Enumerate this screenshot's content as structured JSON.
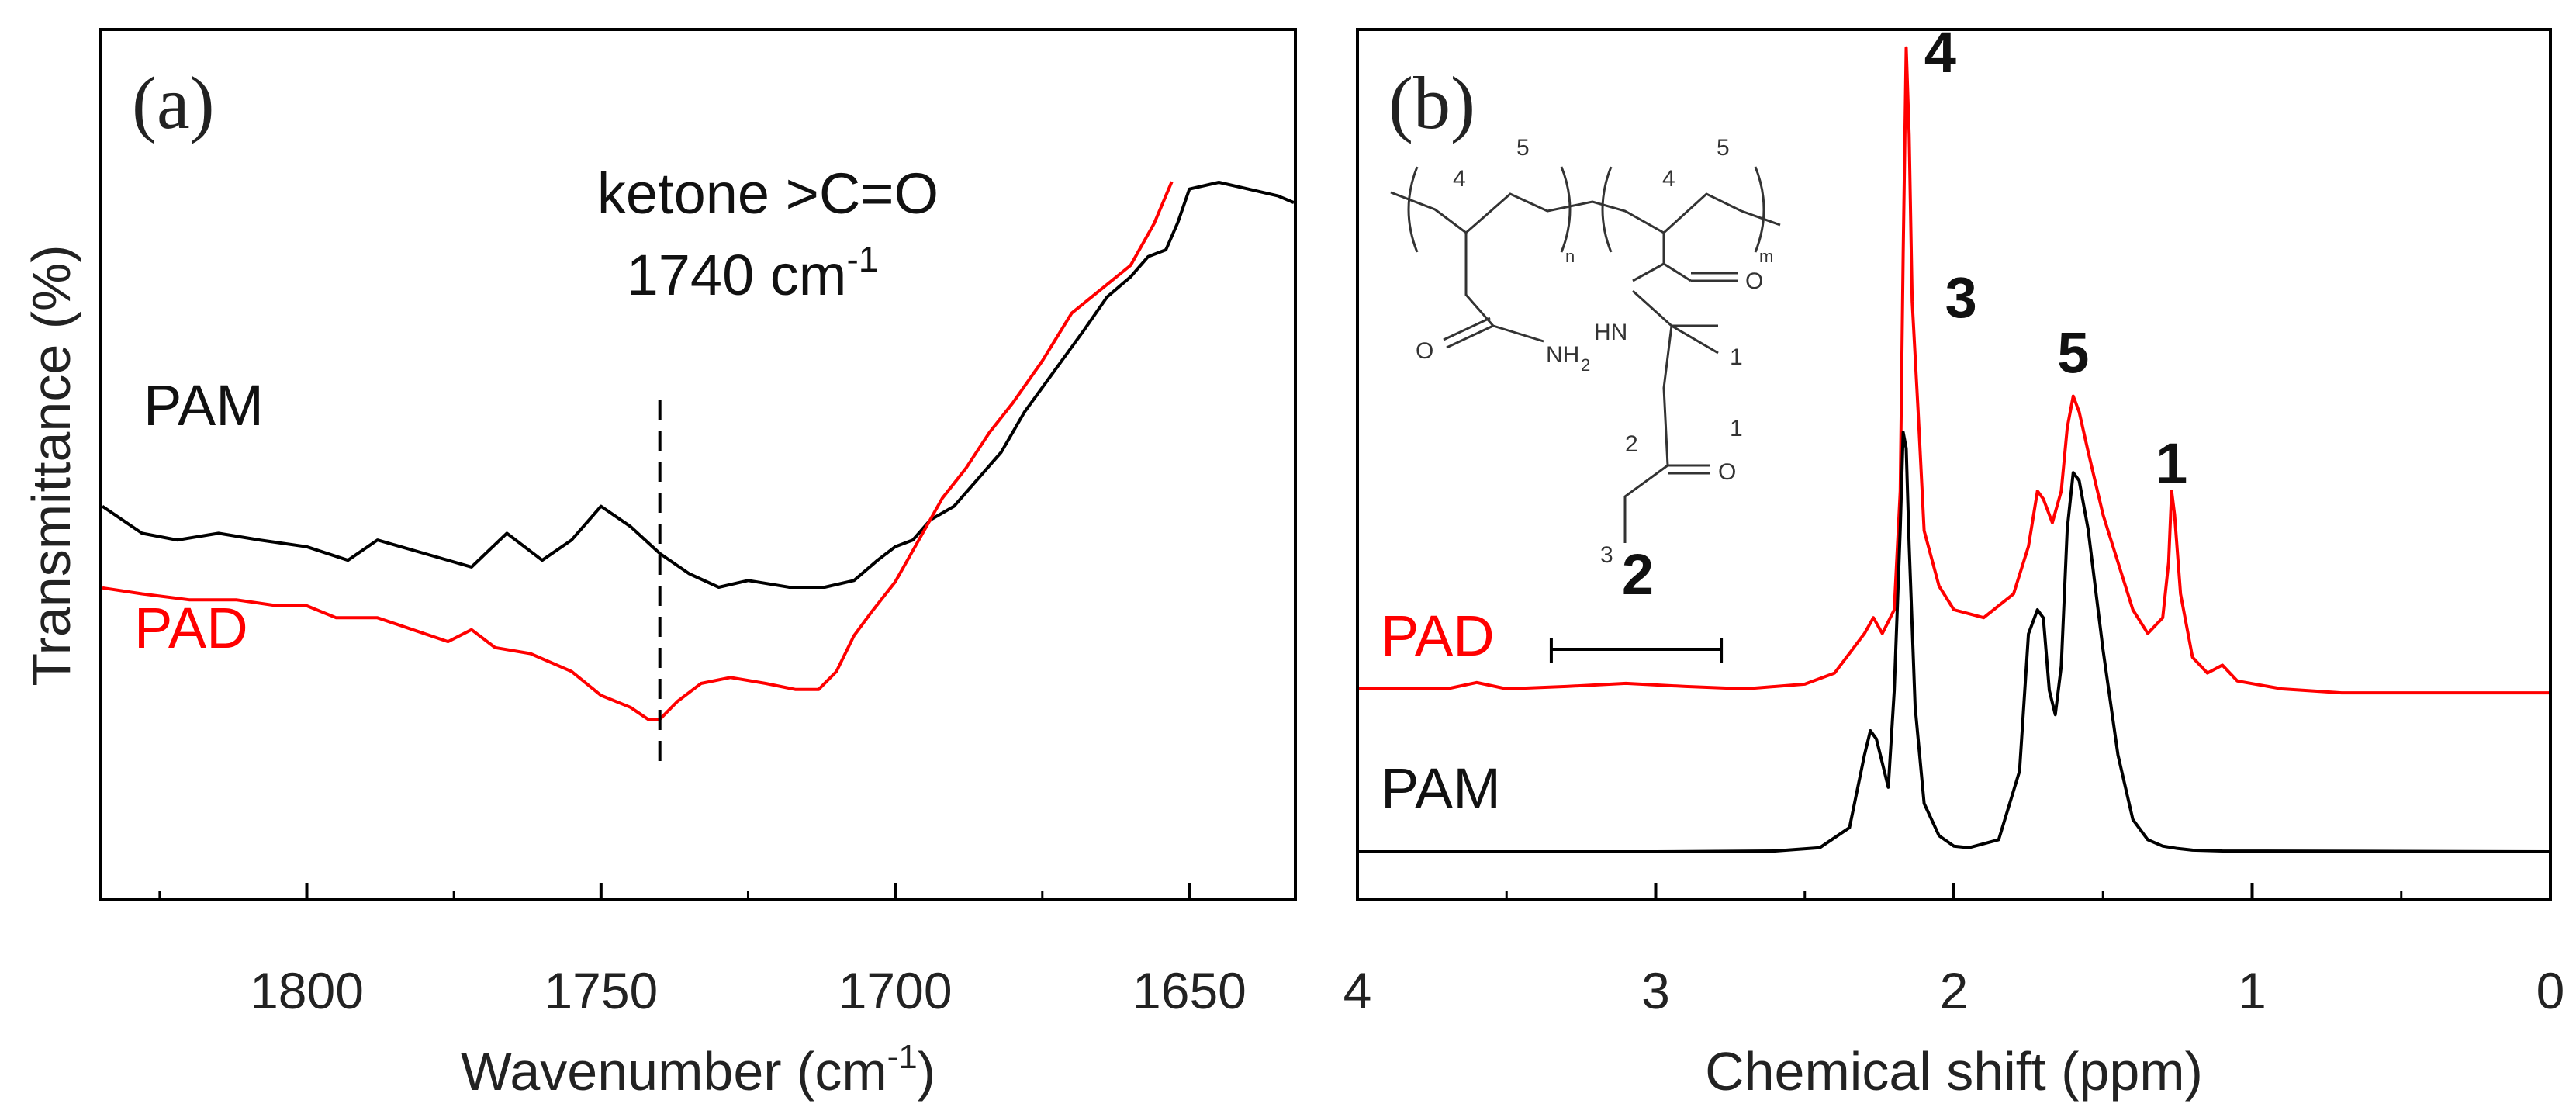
{
  "colors": {
    "PAM": "#000000",
    "PAD": "#ff0000",
    "axis": "#000000"
  },
  "chart_data": [
    {
      "panel": "(a)",
      "type": "line",
      "xlabel": "Wavenumber (cm",
      "xlabel_sup": "-1",
      "xlabel_close": ")",
      "ylabel": "Transmittance (%)",
      "xlim": [
        1835,
        1632
      ],
      "x_reversed": true,
      "ylim": [
        0,
        100
      ],
      "x_ticks": [
        1800,
        1750,
        1700,
        1650
      ],
      "x_tick_labels": [
        "1800",
        "1750",
        "1700",
        "1650"
      ],
      "annotation": {
        "line1": "ketone >C=O",
        "line2": "1740 cm",
        "line2_sup": "-1",
        "x": 1740
      },
      "series": [
        {
          "name": "PAM",
          "x": [
            1835,
            1828,
            1822,
            1815,
            1808,
            1800,
            1793,
            1788,
            1780,
            1772,
            1766,
            1760,
            1755,
            1750,
            1745,
            1740,
            1735,
            1730,
            1725,
            1718,
            1712,
            1707,
            1703,
            1700,
            1697,
            1694,
            1690,
            1686,
            1682,
            1678,
            1673,
            1668,
            1664,
            1660,
            1657,
            1654,
            1652,
            1650,
            1645,
            1640,
            1635,
            1632
          ],
          "y": [
            52,
            48,
            47,
            48,
            47,
            46,
            44,
            47,
            45,
            43,
            48,
            44,
            47,
            52,
            49,
            45,
            42,
            40,
            41,
            40,
            40,
            41,
            44,
            46,
            47,
            50,
            52,
            56,
            60,
            66,
            72,
            78,
            83,
            86,
            89,
            90,
            94,
            99,
            100,
            99,
            98,
            97
          ]
        },
        {
          "name": "PAD",
          "x": [
            1835,
            1828,
            1820,
            1812,
            1805,
            1800,
            1795,
            1788,
            1782,
            1776,
            1772,
            1768,
            1762,
            1755,
            1750,
            1745,
            1742,
            1740,
            1737,
            1733,
            1728,
            1722,
            1717,
            1713,
            1710,
            1707,
            1704,
            1700,
            1696,
            1692,
            1688,
            1684,
            1680,
            1675,
            1670,
            1665,
            1660,
            1656,
            1653
          ],
          "y": [
            36,
            35,
            34,
            34,
            33,
            33,
            31,
            31,
            29,
            27,
            29,
            26,
            25,
            22,
            18,
            16,
            14,
            14,
            17,
            20,
            21,
            20,
            19,
            19,
            22,
            28,
            32,
            37,
            44,
            51,
            56,
            62,
            67,
            74,
            82,
            86,
            90,
            97,
            104
          ]
        }
      ],
      "series_labels": [
        "PAM",
        "PAD"
      ]
    },
    {
      "panel": "(b)",
      "type": "line",
      "xlabel": "Chemical shift (ppm)",
      "xlim": [
        4,
        0
      ],
      "x_reversed": true,
      "ylim": [
        0,
        100
      ],
      "x_ticks": [
        4,
        3,
        2,
        1,
        0
      ],
      "x_tick_labels": [
        "4",
        "3",
        "2",
        "1",
        "0"
      ],
      "peak_labels": [
        {
          "text": "4",
          "x": 2.15,
          "y": 96
        },
        {
          "text": "3",
          "x": 2.08,
          "y": 65
        },
        {
          "text": "5",
          "x": 1.6,
          "y": 58
        },
        {
          "text": "1",
          "x": 1.27,
          "y": 44
        },
        {
          "text": "2",
          "x": 3.06,
          "y": 30
        }
      ],
      "bracket_2": {
        "x_from": 3.35,
        "x_to": 2.78,
        "y": 25
      },
      "series": [
        {
          "name": "PAD",
          "x": [
            4.0,
            3.7,
            3.6,
            3.5,
            3.3,
            3.1,
            2.9,
            2.7,
            2.5,
            2.4,
            2.3,
            2.27,
            2.24,
            2.2,
            2.18,
            2.17,
            2.16,
            2.15,
            2.14,
            2.12,
            2.1,
            2.05,
            2.0,
            1.9,
            1.8,
            1.75,
            1.72,
            1.7,
            1.67,
            1.64,
            1.62,
            1.6,
            1.58,
            1.55,
            1.5,
            1.45,
            1.4,
            1.35,
            1.3,
            1.28,
            1.27,
            1.26,
            1.24,
            1.2,
            1.15,
            1.1,
            1.05,
            0.9,
            0.7,
            0.0
          ],
          "y": [
            20,
            20,
            20.8,
            20,
            20.3,
            20.7,
            20.3,
            20,
            20.6,
            22,
            27,
            29,
            27,
            30,
            45,
            75,
            101,
            90,
            69,
            55,
            40,
            33,
            30,
            29,
            32,
            38,
            45,
            44,
            41,
            45,
            53,
            57,
            55,
            50,
            42,
            36,
            30,
            27,
            29,
            36,
            45,
            42,
            32,
            24,
            22,
            23,
            21,
            20,
            19.5,
            19.5
          ]
        },
        {
          "name": "PAM",
          "x": [
            4.0,
            3.5,
            3.0,
            2.6,
            2.45,
            2.35,
            2.3,
            2.28,
            2.26,
            2.22,
            2.2,
            2.18,
            2.17,
            2.16,
            2.15,
            2.13,
            2.1,
            2.05,
            2.0,
            1.95,
            1.85,
            1.78,
            1.75,
            1.72,
            1.7,
            1.68,
            1.66,
            1.64,
            1.62,
            1.6,
            1.58,
            1.55,
            1.5,
            1.45,
            1.4,
            1.35,
            1.3,
            1.25,
            1.2,
            1.1,
            0.0
          ],
          "y": [
            0,
            0,
            0,
            0.1,
            0.5,
            3,
            12,
            15,
            14,
            8,
            20,
            40,
            52,
            50,
            38,
            18,
            6,
            2,
            0.7,
            0.5,
            1.5,
            10,
            27,
            30,
            29,
            20,
            17,
            23,
            40,
            47,
            46,
            40,
            25,
            12,
            4,
            1.5,
            0.7,
            0.4,
            0.2,
            0.1,
            0
          ]
        }
      ],
      "series_labels": [
        "PAD",
        "PAM"
      ],
      "inset_structure": {
        "position_labels": [
          "4",
          "5",
          "4",
          "5",
          "1",
          "1",
          "2",
          "3"
        ],
        "group_labels": [
          "O",
          "NH",
          "2",
          "O",
          "HN",
          "O"
        ],
        "subscripts": [
          "n",
          "m"
        ]
      }
    }
  ]
}
